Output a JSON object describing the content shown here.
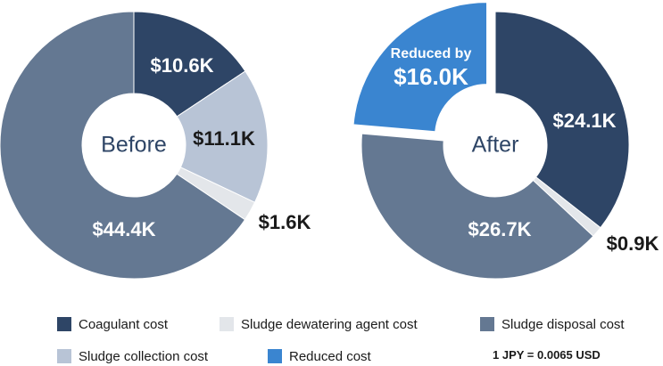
{
  "chart_data": [
    {
      "type": "pie",
      "center_label": "Before",
      "slices": [
        {
          "name": "Coagulant cost",
          "value": 10.6,
          "label": "$10.6K",
          "color": "#2e4566"
        },
        {
          "name": "Sludge collection cost",
          "value": 11.1,
          "label": "$11.1K",
          "color": "#b8c4d6"
        },
        {
          "name": "Sludge dewatering agent cost",
          "value": 1.6,
          "label": "$1.6K",
          "color": "#e3e6ea"
        },
        {
          "name": "Sludge disposal cost",
          "value": 44.4,
          "label": "$44.4K",
          "color": "#647892"
        }
      ]
    },
    {
      "type": "pie",
      "center_label": "After",
      "slices": [
        {
          "name": "Coagulant cost",
          "value": 24.1,
          "label": "$24.1K",
          "color": "#2e4566"
        },
        {
          "name": "Sludge dewatering agent cost",
          "value": 0.9,
          "label": "$0.9K",
          "color": "#e3e6ea"
        },
        {
          "name": "Sludge disposal cost",
          "value": 26.7,
          "label": "$26.7K",
          "color": "#647892"
        },
        {
          "name": "Reduced cost",
          "value": 16.0,
          "label": "$16.0K",
          "label_prefix": "Reduced by",
          "color": "#3a85d0",
          "exploded": true
        }
      ]
    }
  ],
  "legend": [
    {
      "name": "Coagulant cost",
      "color": "#2e4566"
    },
    {
      "name": "Sludge dewatering agent cost",
      "color": "#e3e6ea"
    },
    {
      "name": "Sludge disposal cost",
      "color": "#647892"
    },
    {
      "name": "Sludge collection cost",
      "color": "#b8c4d6"
    },
    {
      "name": "Reduced cost",
      "color": "#3a85d0"
    }
  ],
  "rate_note": "1 JPY = 0.0065 USD"
}
